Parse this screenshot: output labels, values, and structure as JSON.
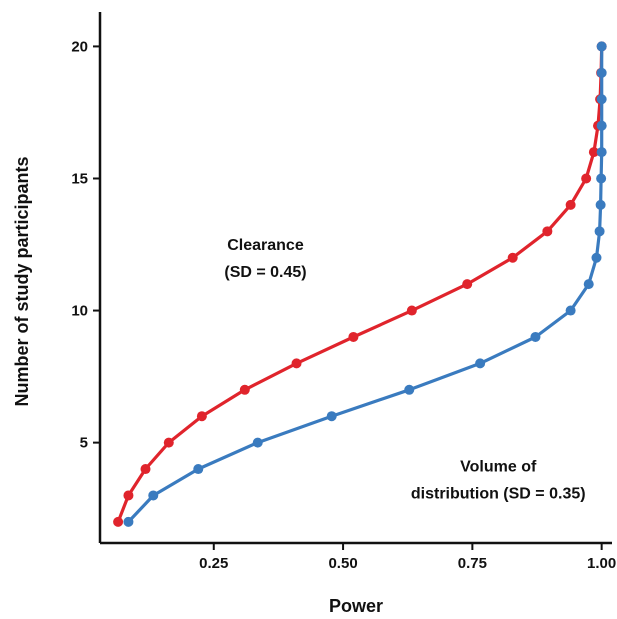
{
  "chart_data": {
    "type": "line",
    "xlabel": "Power",
    "ylabel": "Number of study participants",
    "xlim": [
      0.03,
      1.02
    ],
    "ylim": [
      1.2,
      21
    ],
    "xticks": [
      {
        "value": 0.25,
        "label": "0.25"
      },
      {
        "value": 0.5,
        "label": "0.50"
      },
      {
        "value": 0.75,
        "label": "0.75"
      },
      {
        "value": 1.0,
        "label": "1.00"
      }
    ],
    "yticks": [
      {
        "value": 5,
        "label": "5"
      },
      {
        "value": 10,
        "label": "10"
      },
      {
        "value": 15,
        "label": "15"
      },
      {
        "value": 20,
        "label": "20"
      }
    ],
    "grid": false,
    "legend": "none",
    "series": [
      {
        "color": "#e0242c",
        "points": [
          [
            0.065,
            2
          ],
          [
            0.085,
            3
          ],
          [
            0.118,
            4
          ],
          [
            0.163,
            5
          ],
          [
            0.227,
            6
          ],
          [
            0.31,
            7
          ],
          [
            0.41,
            8
          ],
          [
            0.52,
            9
          ],
          [
            0.633,
            10
          ],
          [
            0.74,
            11
          ],
          [
            0.828,
            12
          ],
          [
            0.895,
            13
          ],
          [
            0.94,
            14
          ],
          [
            0.97,
            15
          ],
          [
            0.985,
            16
          ],
          [
            0.993,
            17
          ],
          [
            0.997,
            18
          ],
          [
            0.999,
            19
          ],
          [
            1.0,
            20
          ]
        ]
      },
      {
        "color": "#3a7bbf",
        "points": [
          [
            0.085,
            2
          ],
          [
            0.133,
            3
          ],
          [
            0.22,
            4
          ],
          [
            0.335,
            5
          ],
          [
            0.478,
            6
          ],
          [
            0.628,
            7
          ],
          [
            0.765,
            8
          ],
          [
            0.872,
            9
          ],
          [
            0.94,
            10
          ],
          [
            0.975,
            11
          ],
          [
            0.99,
            12
          ],
          [
            0.996,
            13
          ],
          [
            0.998,
            14
          ],
          [
            0.999,
            15
          ],
          [
            1.0,
            16
          ],
          [
            1.0,
            17
          ],
          [
            1.0,
            18
          ],
          [
            1.0,
            19
          ],
          [
            1.0,
            20
          ]
        ]
      }
    ],
    "annotations": [
      {
        "lines": [
          "Clearance",
          "(SD = 0.45)"
        ],
        "x": 0.35,
        "y": 12.3,
        "color": "#111111"
      },
      {
        "lines": [
          "Volume of",
          "distribution (SD = 0.35)"
        ],
        "x": 0.8,
        "y": 3.9,
        "color": "#111111"
      }
    ]
  }
}
